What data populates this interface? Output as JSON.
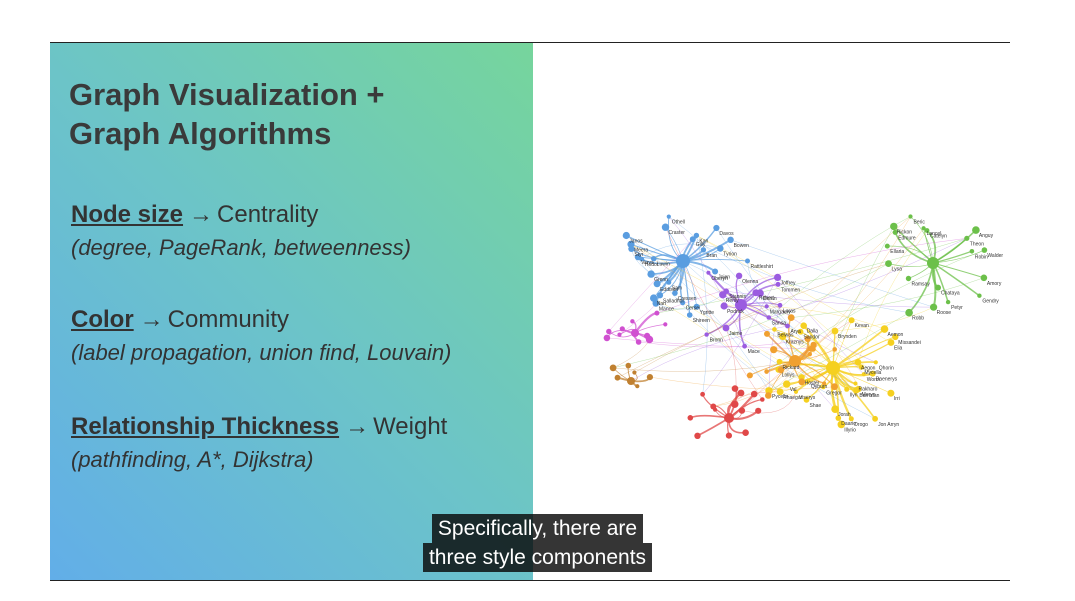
{
  "slide": {
    "title_line1": "Graph Visualization +",
    "title_line2": "Graph Algorithms",
    "items": [
      {
        "key": "Node size",
        "arrow": "→",
        "value": "Centrality",
        "detail": "(degree, PageRank, betweenness)"
      },
      {
        "key": "Color",
        "arrow": "→",
        "value": "Community",
        "detail": "(label propagation, union find, Louvain)"
      },
      {
        "key": "Relationship Thickness",
        "arrow": "→",
        "value": "Weight",
        "detail": "(pathfinding, A*, Dijkstra)"
      }
    ]
  },
  "caption": {
    "line1": "Specifically, there are",
    "line2": "three style components"
  },
  "graph": {
    "colors": {
      "blue": "#5a9de0",
      "purple": "#9b5ce0",
      "green": "#6cc04a",
      "yellow": "#f5d020",
      "orange": "#f0a030",
      "red": "#e04848",
      "magenta": "#d050d0",
      "brown": "#c08030"
    },
    "labels": [
      "Rattleshirt",
      "Ygritte",
      "Mance",
      "Styr",
      "Kan",
      "Othell",
      "Craster",
      "Gilly",
      "Bowen",
      "Janos",
      "Eddison",
      "Sam",
      "Grenn",
      "Meera",
      "Jojen",
      "Hodor",
      "Bran",
      "Nan",
      "Luwin",
      "Cressen",
      "Salladhor",
      "Shireen",
      "Davos",
      "Varys",
      "Tyrion",
      "Cersei",
      "Jaime",
      "Robert",
      "Sansa",
      "Arya",
      "Stannis",
      "Renly",
      "Joffrey",
      "Tommen",
      "Margaery",
      "Loras",
      "Olenna",
      "Mace",
      "Bronn",
      "Podrick",
      "Oberyn",
      "Doran",
      "Ellaria",
      "Chataya",
      "Amory",
      "Lancel",
      "Gendry",
      "Beric",
      "Anguy",
      "Walder",
      "Roose",
      "Ramsay",
      "Theon",
      "Edmure",
      "Catelyn",
      "Robb",
      "Rickon",
      "Petyr",
      "Lysa",
      "Robin",
      "Hoster",
      "Rickard",
      "Brynden",
      "Daenerys",
      "Drogo",
      "Daario",
      "Irri",
      "Missandei",
      "Aegon",
      "Kraznys",
      "Worm",
      "Rakharo",
      "Belwas",
      "Barristan",
      "Jorah",
      "Rhaegar",
      "Viserys",
      "Illyrio",
      "Jon Arryn",
      "Meryn",
      "Ilyn",
      "Sandor",
      "Mycella",
      "Gregor",
      "Qyburn",
      "Elia",
      "Pycelle",
      "Kevan",
      "Shae",
      "Lollys",
      "Dalla",
      "Aemon",
      "Val",
      "Qhorin"
    ]
  }
}
